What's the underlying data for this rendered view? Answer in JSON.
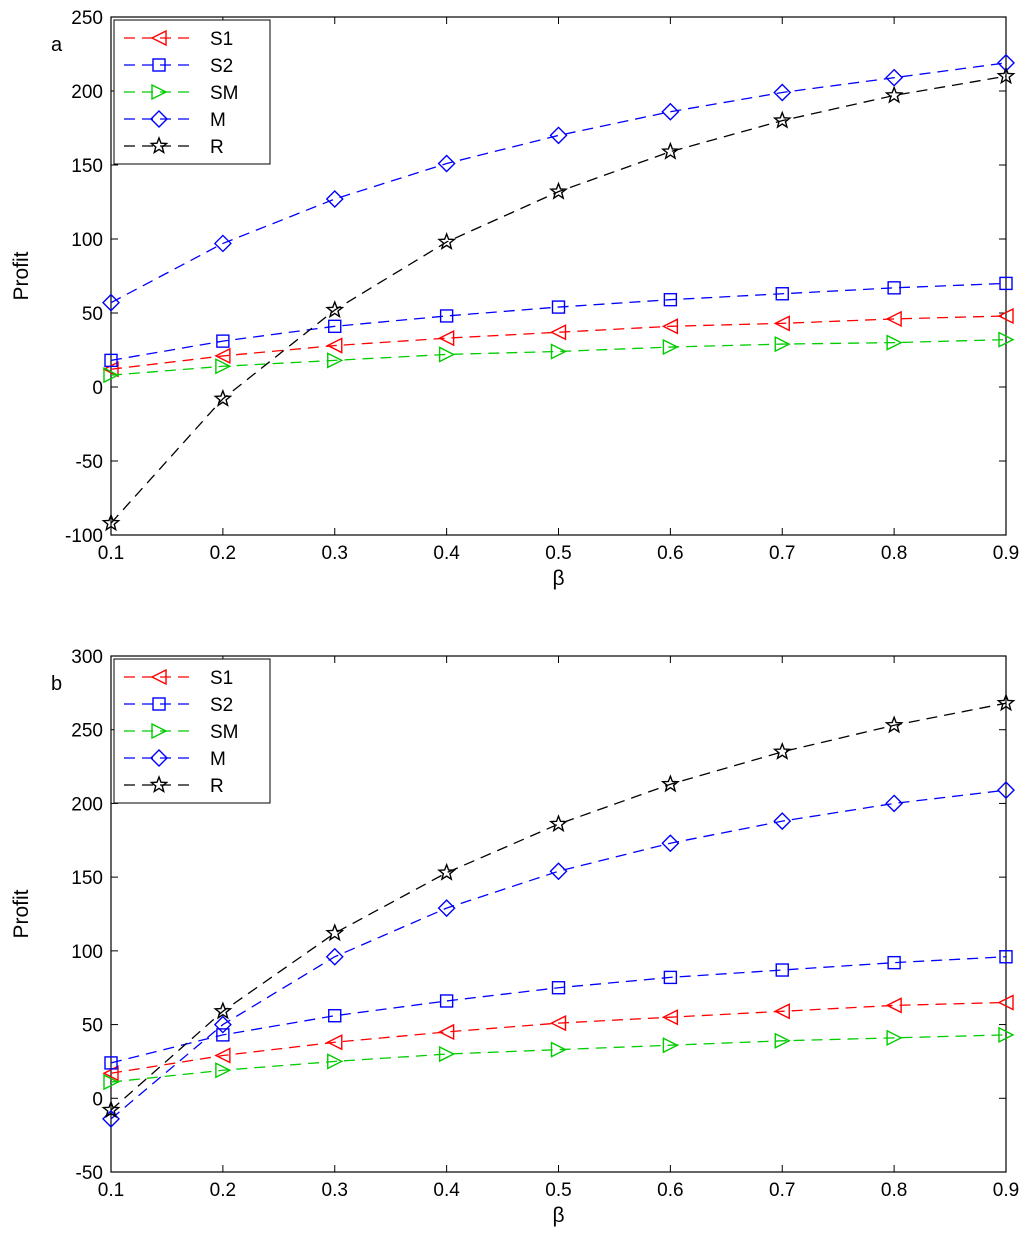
{
  "chart_data": [
    {
      "type": "line",
      "panel_label": "a",
      "xlabel": "β",
      "ylabel": "Profit",
      "xlim": [
        0.1,
        0.9
      ],
      "ylim": [
        -100,
        250
      ],
      "xticks": [
        0.1,
        0.2,
        0.3,
        0.4,
        0.5,
        0.6,
        0.7,
        0.8,
        0.9
      ],
      "yticks": [
        -100,
        -50,
        0,
        50,
        100,
        150,
        200,
        250
      ],
      "grid": false,
      "legend_position": "top-left",
      "x": [
        0.1,
        0.2,
        0.3,
        0.4,
        0.5,
        0.6,
        0.7,
        0.8,
        0.9
      ],
      "series": [
        {
          "name": "S1",
          "color": "#ff0000",
          "marker": "triangle-left",
          "values": [
            12,
            21,
            28,
            33,
            37,
            41,
            43,
            46,
            48
          ]
        },
        {
          "name": "S2",
          "color": "#0000ff",
          "marker": "square",
          "values": [
            18,
            31,
            41,
            48,
            54,
            59,
            63,
            67,
            70
          ]
        },
        {
          "name": "SM",
          "color": "#00cc00",
          "marker": "triangle-right",
          "values": [
            8,
            14,
            18,
            22,
            24,
            27,
            29,
            30,
            32
          ]
        },
        {
          "name": "M",
          "color": "#0000ff",
          "marker": "diamond",
          "values": [
            57,
            97,
            127,
            151,
            170,
            186,
            199,
            209,
            219
          ]
        },
        {
          "name": "R",
          "color": "#000000",
          "marker": "star",
          "values": [
            -92,
            -8,
            52,
            98,
            132,
            159,
            180,
            197,
            210
          ]
        }
      ]
    },
    {
      "type": "line",
      "panel_label": "b",
      "xlabel": "β",
      "ylabel": "Profit",
      "xlim": [
        0.1,
        0.9
      ],
      "ylim": [
        -50,
        300
      ],
      "xticks": [
        0.1,
        0.2,
        0.3,
        0.4,
        0.5,
        0.6,
        0.7,
        0.8,
        0.9
      ],
      "yticks": [
        -50,
        0,
        50,
        100,
        150,
        200,
        250,
        300
      ],
      "grid": false,
      "legend_position": "top-left",
      "x": [
        0.1,
        0.2,
        0.3,
        0.4,
        0.5,
        0.6,
        0.7,
        0.8,
        0.9
      ],
      "series": [
        {
          "name": "S1",
          "color": "#ff0000",
          "marker": "triangle-left",
          "values": [
            17,
            29,
            38,
            45,
            51,
            55,
            59,
            63,
            65
          ]
        },
        {
          "name": "S2",
          "color": "#0000ff",
          "marker": "square",
          "values": [
            24,
            43,
            56,
            66,
            75,
            82,
            87,
            92,
            96
          ]
        },
        {
          "name": "SM",
          "color": "#00cc00",
          "marker": "triangle-right",
          "values": [
            11,
            19,
            25,
            30,
            33,
            36,
            39,
            41,
            43
          ]
        },
        {
          "name": "M",
          "color": "#0000ff",
          "marker": "diamond",
          "values": [
            -14,
            50,
            96,
            129,
            154,
            173,
            188,
            200,
            209
          ]
        },
        {
          "name": "R",
          "color": "#000000",
          "marker": "star",
          "values": [
            -8,
            59,
            112,
            153,
            186,
            213,
            235,
            253,
            268
          ]
        }
      ]
    }
  ]
}
